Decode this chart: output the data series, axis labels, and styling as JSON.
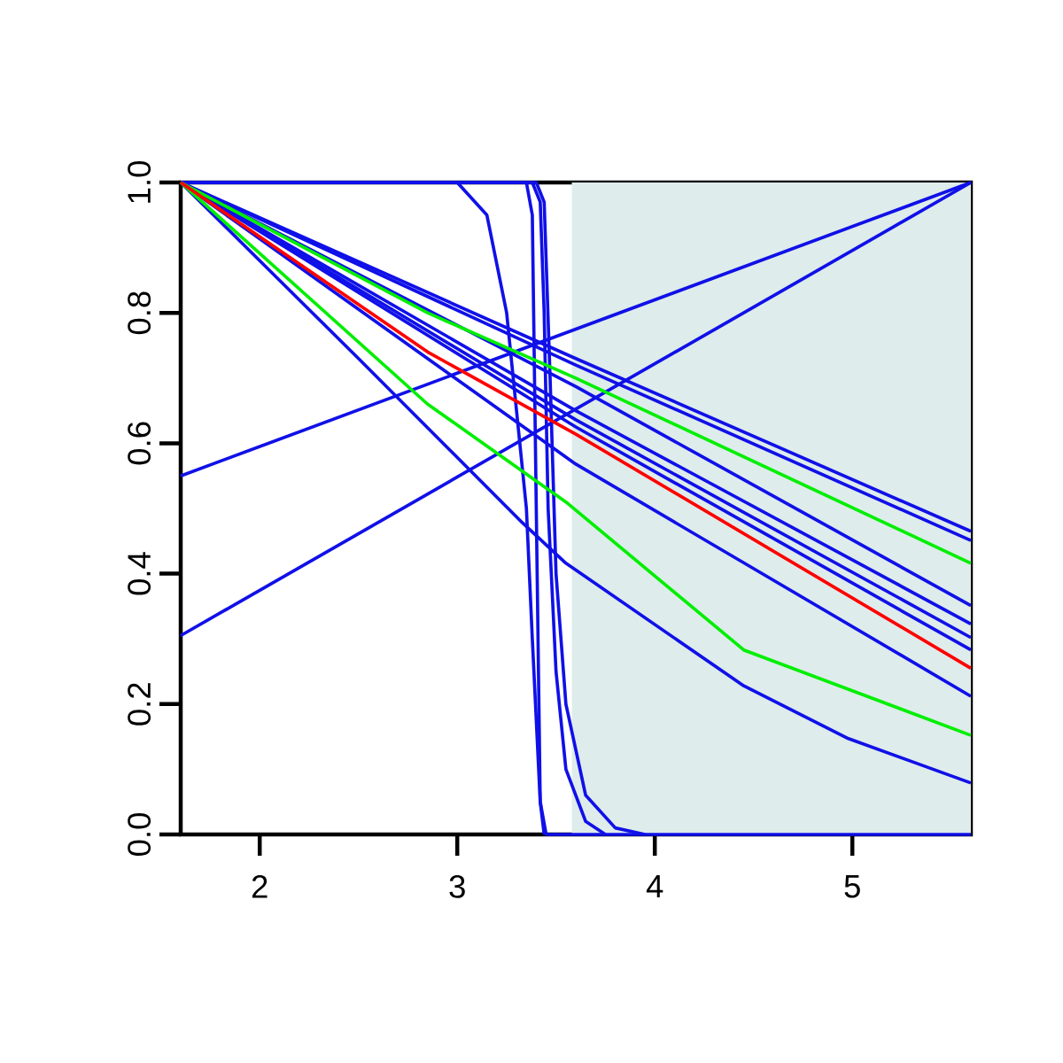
{
  "chart_data": {
    "type": "line",
    "xlim": [
      1.6,
      5.6
    ],
    "ylim": [
      0,
      1
    ],
    "xticks": [
      2,
      3,
      4,
      5
    ],
    "yticks": [
      {
        "value": 0,
        "label": "0.0"
      },
      {
        "value": 0.2,
        "label": "0.2"
      },
      {
        "value": 0.4,
        "label": "0.4"
      },
      {
        "value": 0.6,
        "label": "0.6"
      },
      {
        "value": 0.8,
        "label": "0.8"
      },
      {
        "value": 1,
        "label": "1.0"
      }
    ],
    "bands": [
      {
        "axis": "x",
        "from": 3.58,
        "to": 5.6,
        "color": "#deeceb"
      }
    ],
    "series": [
      {
        "color": "#1010e8",
        "x": [
          1.6,
          3.6,
          5.6
        ],
        "values": [
          1,
          0.73,
          0.465
        ]
      },
      {
        "color": "#1010e8",
        "x": [
          1.6,
          3.6,
          5.6
        ],
        "values": [
          1,
          0.72,
          0.451
        ]
      },
      {
        "color": "#1010e8",
        "x": [
          1.6,
          3.6,
          5.6
        ],
        "values": [
          1,
          0.687,
          0.351
        ]
      },
      {
        "color": "#1010e8",
        "x": [
          1.6,
          3.6,
          5.6
        ],
        "values": [
          1,
          0.65,
          0.323
        ]
      },
      {
        "color": "#1010e8",
        "x": [
          1.6,
          3.6,
          5.6
        ],
        "values": [
          1,
          0.636,
          0.302
        ]
      },
      {
        "color": "#1010e8",
        "x": [
          1.6,
          3.6,
          5.6
        ],
        "values": [
          1,
          0.625,
          0.283
        ]
      },
      {
        "color": "#1010e8",
        "x": [
          1.6,
          3.6,
          5.6
        ],
        "values": [
          1,
          0.568,
          0.212
        ]
      },
      {
        "color": "#1010e8",
        "x": [
          1.6,
          2.5,
          3.33,
          3.55,
          4.45,
          4.98,
          5.6
        ],
        "values": [
          1,
          0.73,
          0.478,
          0.416,
          0.228,
          0.147,
          0.079
        ]
      },
      {
        "color": "#1010e8",
        "x": [
          1.6,
          5.6
        ],
        "values": [
          0.55,
          1
        ]
      },
      {
        "color": "#1010e8",
        "x": [
          1.6,
          5.6
        ],
        "values": [
          0.305,
          1
        ]
      },
      {
        "color": "#1010e8",
        "x": [
          1.6,
          3.0,
          3.15,
          3.25,
          3.3,
          3.35,
          3.38,
          3.42,
          3.45,
          5.6
        ],
        "values": [
          1,
          1,
          0.95,
          0.8,
          0.65,
          0.5,
          0.3,
          0.05,
          0,
          0
        ]
      },
      {
        "color": "#1010e8",
        "x": [
          1.6,
          3.35,
          3.38,
          3.4,
          3.42,
          3.44
        ],
        "values": [
          1,
          1,
          0.95,
          0.5,
          0.05,
          0
        ]
      },
      {
        "color": "#1010e8",
        "x": [
          1.6,
          3.38,
          3.42,
          3.44,
          3.46,
          3.5,
          3.55,
          3.65,
          3.75
        ],
        "values": [
          1,
          1,
          0.97,
          0.8,
          0.5,
          0.25,
          0.1,
          0.02,
          0
        ]
      },
      {
        "color": "#1010e8",
        "x": [
          1.6,
          3.4,
          3.44,
          3.47,
          3.5,
          3.55,
          3.65,
          3.8,
          3.95
        ],
        "values": [
          1,
          1,
          0.97,
          0.7,
          0.4,
          0.2,
          0.06,
          0.01,
          0
        ]
      },
      {
        "color": "#00ee00",
        "x": [
          1.6,
          2.85,
          3.6,
          5.6
        ],
        "values": [
          1,
          0.8,
          0.7,
          0.416
        ]
      },
      {
        "color": "#00ee00",
        "x": [
          1.6,
          2.85,
          3.55,
          4.45,
          5.6
        ],
        "values": [
          1,
          0.66,
          0.51,
          0.283,
          0.152
        ]
      },
      {
        "color": "#ff0000",
        "x": [
          1.6,
          2.85,
          3.6,
          5.6
        ],
        "values": [
          1,
          0.74,
          0.614,
          0.255
        ]
      }
    ]
  }
}
